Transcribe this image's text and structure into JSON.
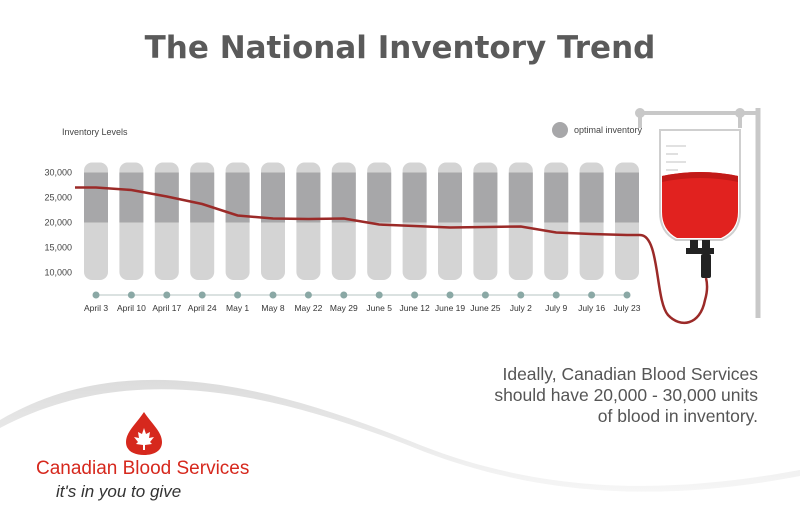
{
  "title": "The National Inventory Trend",
  "legend": {
    "label": "optimal inventory",
    "color": "#a7a7a9"
  },
  "caption": {
    "line1": "Ideally, Canadian Blood Services",
    "line2": "should have 20,000 - 30,000 units",
    "line3": "of blood in inventory."
  },
  "logo": {
    "name": "Canadian Blood Services",
    "tagline": "it's in you to give"
  },
  "colors": {
    "accent": "#d6281d",
    "line": "#9b2a28",
    "bar_light": "#d4d4d4",
    "bar_dark": "#a7a7a9",
    "dots": "#8aa8a5"
  },
  "chart_data": {
    "type": "line",
    "ylabel": "Inventory Levels",
    "ylim": [
      7500,
      32500
    ],
    "yticks": [
      10000,
      15000,
      20000,
      25000,
      30000
    ],
    "ytick_labels": [
      "10,000",
      "15,000",
      "20,000",
      "25,000",
      "30,000"
    ],
    "categories": [
      "April 3",
      "April 10",
      "April 17",
      "April 24",
      "May 1",
      "May 8",
      "May 22",
      "May 29",
      "June 5",
      "June 12",
      "June 19",
      "June 25",
      "July 2",
      "July 9",
      "July 16",
      "July 23"
    ],
    "optimal_range": [
      20000,
      30000
    ],
    "series": [
      {
        "values": [
          27000,
          26500,
          25200,
          23700,
          21400,
          20800,
          20700,
          20800,
          19600,
          19300,
          19000,
          19100,
          19200,
          18000,
          17700,
          17500
        ]
      }
    ]
  }
}
